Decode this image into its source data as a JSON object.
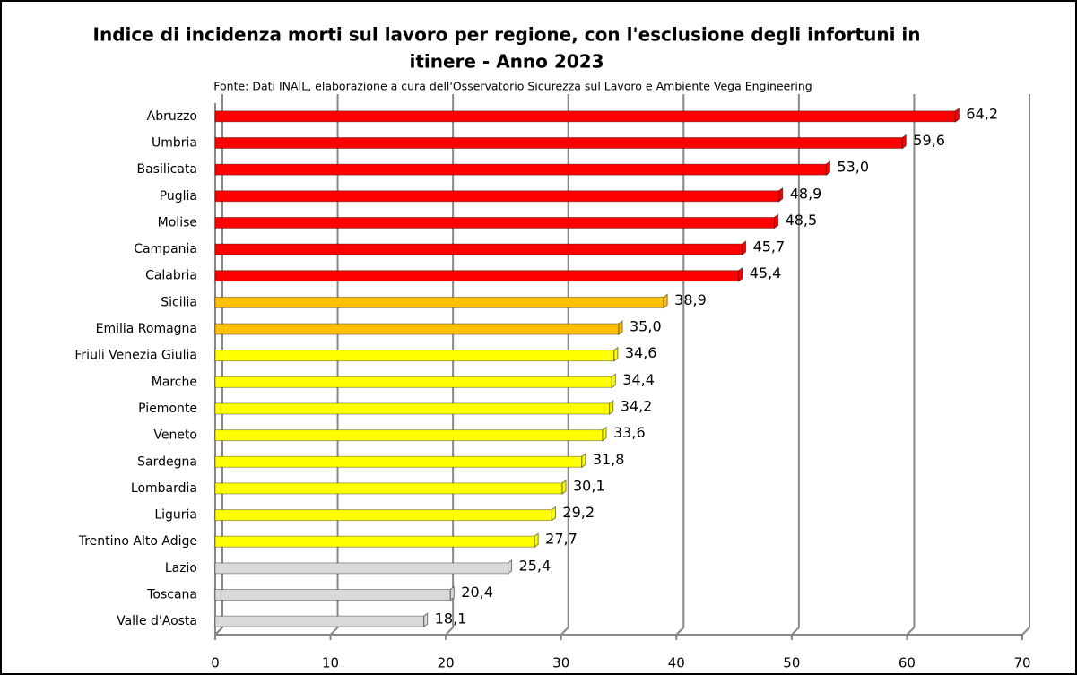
{
  "chart_data": {
    "type": "bar",
    "orientation": "horizontal",
    "title": [
      "Indice di incidenza morti sul lavoro per regione, con l'esclusione degli infortuni in",
      "itinere - Anno 2023"
    ],
    "subtitle": "Fonte: Dati INAIL, elaborazione a cura dell'Osservatorio Sicurezza sul Lavoro e Ambiente Vega Engineering",
    "categories": [
      "Abruzzo",
      "Umbria",
      "Basilicata",
      "Puglia",
      "Molise",
      "Campania",
      "Calabria",
      "Sicilia",
      "Emilia Romagna",
      "Friuli Venezia Giulia",
      "Marche",
      "Piemonte",
      "Veneto",
      "Sardegna",
      "Lombardia",
      "Liguria",
      "Trentino Alto Adige",
      "Lazio",
      "Toscana",
      "Valle d'Aosta"
    ],
    "values": [
      64.2,
      59.6,
      53.0,
      48.9,
      48.5,
      45.7,
      45.4,
      38.9,
      35.0,
      34.6,
      34.4,
      34.2,
      33.6,
      31.8,
      30.1,
      29.2,
      27.7,
      25.4,
      20.4,
      18.1
    ],
    "value_labels": [
      "64,2",
      "59,6",
      "53,0",
      "48,9",
      "48,5",
      "45,7",
      "45,4",
      "38,9",
      "35,0",
      "34,6",
      "34,4",
      "34,2",
      "33,6",
      "31,8",
      "30,1",
      "29,2",
      "27,7",
      "25,4",
      "20,4",
      "18,1"
    ],
    "colors": [
      "#ff0000",
      "#ff0000",
      "#ff0000",
      "#ff0000",
      "#ff0000",
      "#ff0000",
      "#ff0000",
      "#ffc000",
      "#ffc000",
      "#ffff00",
      "#ffff00",
      "#ffff00",
      "#ffff00",
      "#ffff00",
      "#ffff00",
      "#ffff00",
      "#ffff00",
      "#d9d9d9",
      "#d9d9d9",
      "#d9d9d9"
    ],
    "xlim": [
      0,
      70
    ],
    "xticks": [
      0,
      10,
      20,
      30,
      40,
      50,
      60,
      70
    ],
    "grid": true
  }
}
